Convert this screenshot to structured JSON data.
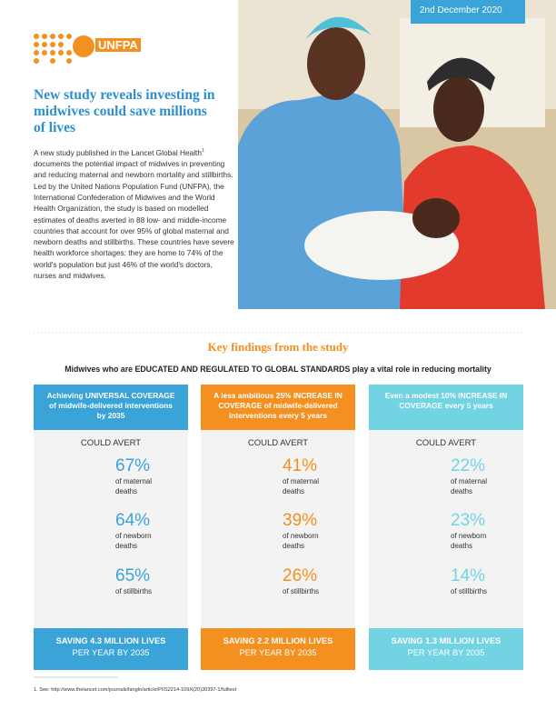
{
  "header": {
    "date": "2nd December 2020",
    "logo": "UNFPA",
    "title": "New study reveals investing in midwives could save millions of lives",
    "body_before": "A new study published in the Lancet Global Health",
    "body_ref": "1",
    "body_after": " documents the potential impact of midwives in preventing and reducing maternal and newborn mortality and stillbirths. Led by the United Nations Population Fund (UNFPA), the International Confederation of Midwives and the World Health Organization, the study is based on modelled estimates of deaths averted in 88 low- and middle-income countries that account for over 95% of global maternal and newborn deaths and stillbirths. These countries have severe health workforce shortages: they are home to 74% of the world's population but just 46% of the world's doctors, nurses and midwives."
  },
  "findings": {
    "title": "Key findings from the study",
    "subtitle": "Midwives who are EDUCATED AND REGULATED TO GLOBAL STANDARDS play a vital role in reducing mortality",
    "columns": [
      {
        "heading": "Achieving UNIVERSAL COVERAGE of midwife-delivered interventions by 2035",
        "color": "#3aa3d8",
        "avert_label": "COULD AVERT",
        "items": [
          {
            "value": 67,
            "label": "67%",
            "text": "of maternal deaths"
          },
          {
            "value": 64,
            "label": "64%",
            "text": "of newborn deaths"
          },
          {
            "value": 65,
            "label": "65%",
            "text": "of stillbirths"
          }
        ],
        "saving": "SAVING 4.3 MILLION LIVES",
        "saving_sub": "PER YEAR BY 2035"
      },
      {
        "heading": "A less ambitious 25% INCREASE IN COVERAGE of midwife-delivered interventions every 5 years",
        "color": "#f39020",
        "avert_label": "COULD AVERT",
        "items": [
          {
            "value": 41,
            "label": "41%",
            "text": "of maternal deaths"
          },
          {
            "value": 39,
            "label": "39%",
            "text": "of newborn deaths"
          },
          {
            "value": 26,
            "label": "26%",
            "text": "of stillbirths"
          }
        ],
        "saving": "SAVING 2.2 MILLION LIVES",
        "saving_sub": "PER YEAR BY 2035"
      },
      {
        "heading": "Even a modest 10% INCREASE IN COVERAGE every 5 years",
        "color": "#72d3e2",
        "avert_label": "COULD AVERT",
        "items": [
          {
            "value": 22,
            "label": "22%",
            "text": "of maternal deaths"
          },
          {
            "value": 23,
            "label": "23%",
            "text": "of newborn deaths"
          },
          {
            "value": 14,
            "label": "14%",
            "text": "of stillbirths"
          }
        ],
        "saving": "SAVING 1.3 MILLION LIVES",
        "saving_sub": "PER YEAR BY 2035"
      }
    ]
  },
  "footnote": "1. See: http://www.thelancet.com/journals/langlo/article/PIIS2214-109X(20)30397-1/fulltext"
}
